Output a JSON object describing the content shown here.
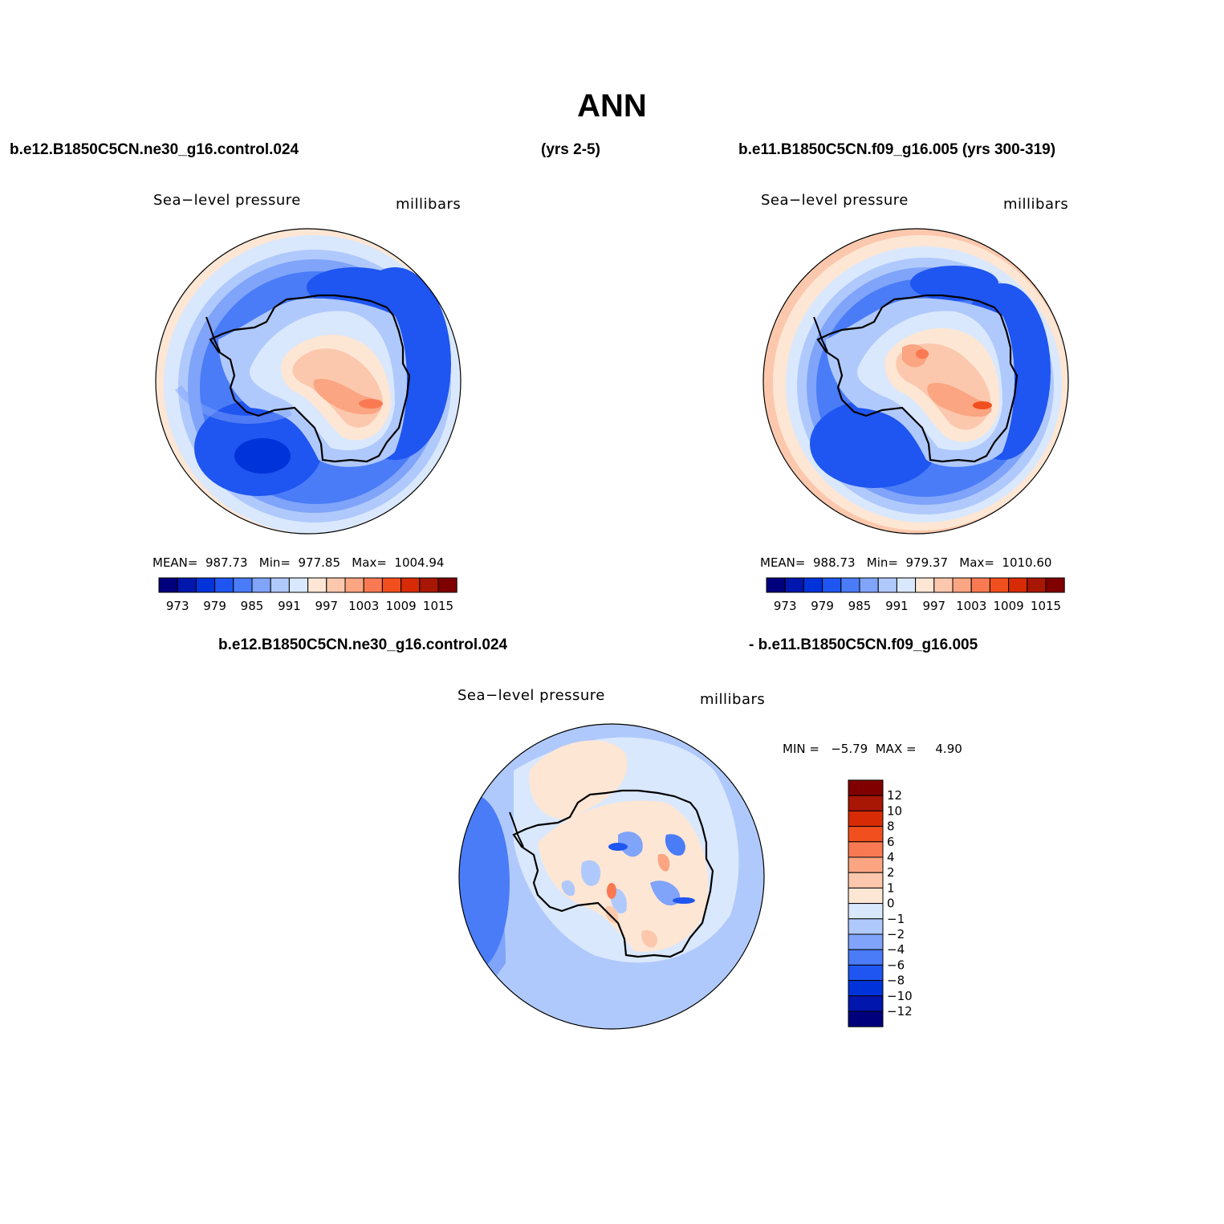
{
  "title": "ANN",
  "headers": {
    "left_case": "b.e12.B1850C5CN.ne30_g16.control.024",
    "left_years": "(yrs 2-5)",
    "right_case": "b.e11.B1850C5CN.f09_g16.005 (yrs 300-319)",
    "diff_left": "b.e12.B1850C5CN.ne30_g16.control.024",
    "diff_right": "- b.e11.B1850C5CN.f09_g16.005"
  },
  "panels": [
    {
      "variable": "Sea−level pressure",
      "units": "millibars",
      "stats": "MEAN=  987.73   Min=  977.85   Max=  1004.94"
    },
    {
      "variable": "Sea−level pressure",
      "units": "millibars",
      "stats": "MEAN=  988.73   Min=  979.37   Max=  1010.60"
    },
    {
      "variable": "Sea−level pressure",
      "units": "millibars",
      "stats": "MIN =   −5.79  MAX =     4.90"
    }
  ],
  "colorbar_h": {
    "colors": [
      "#00007d",
      "#0016ad",
      "#0033d9",
      "#1f55f0",
      "#4a7cf7",
      "#7fa4f9",
      "#b0c9fc",
      "#d9e8fd",
      "#fde6d4",
      "#fcc8ad",
      "#fba582",
      "#f97a52",
      "#f24f1f",
      "#d62b05",
      "#a81604",
      "#800000"
    ],
    "labels": [
      "973",
      "979",
      "985",
      "991",
      "997",
      "1003",
      "1009",
      "1015"
    ]
  },
  "colorbar_v": {
    "colors": [
      "#00007d",
      "#0016ad",
      "#0033d9",
      "#1f55f0",
      "#4a7cf7",
      "#7fa4f9",
      "#b0c9fc",
      "#d9e8fd",
      "#fde6d4",
      "#fcc8ad",
      "#fba582",
      "#f97a52",
      "#f24f1f",
      "#d62b05",
      "#a81604",
      "#800000"
    ],
    "labels": [
      "−12",
      "−10",
      "−8",
      "−6",
      "−4",
      "−2",
      "−1",
      "0",
      "1",
      "2",
      "4",
      "6",
      "8",
      "10",
      "12"
    ]
  }
}
